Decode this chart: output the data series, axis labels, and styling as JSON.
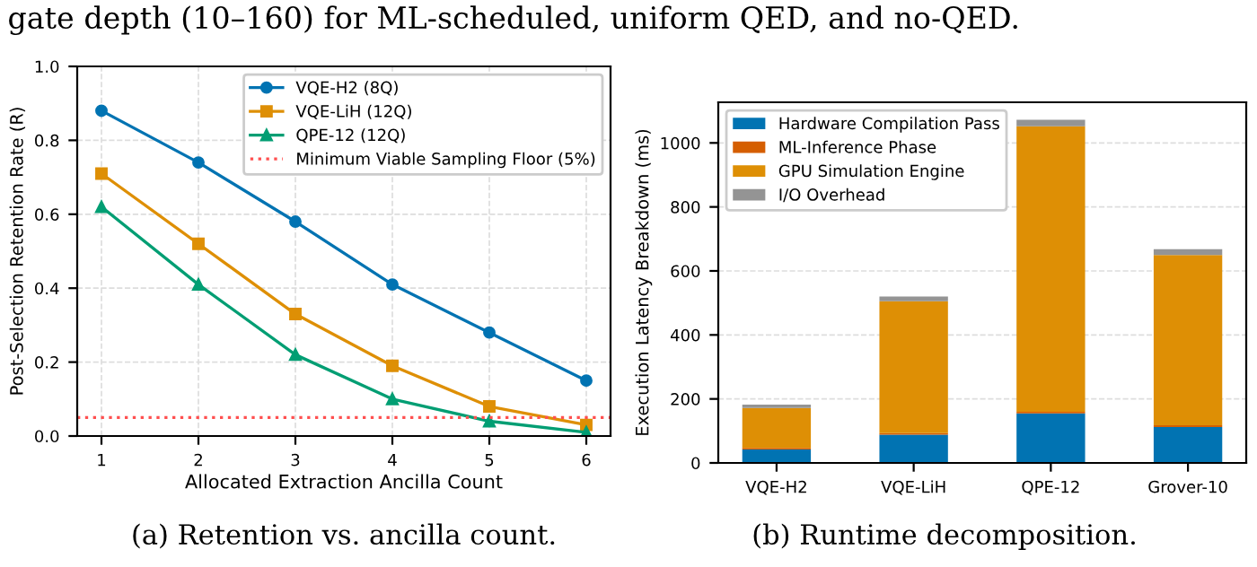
{
  "chart_data": [
    {
      "type": "line",
      "xlabel": "Allocated Extraction Ancilla Count",
      "ylabel": "Post-Selection Retention Rate (R)",
      "x": [
        1,
        2,
        3,
        4,
        5,
        6
      ],
      "xlim": [
        0.75,
        6.25
      ],
      "ylim": [
        0,
        1.0
      ],
      "xticks": [
        1,
        2,
        3,
        4,
        5,
        6
      ],
      "yticks": [
        {
          "value": 0,
          "label": "0.0"
        },
        0.2,
        0.4,
        0.6,
        0.8,
        {
          "value": 1,
          "label": "1.0"
        }
      ],
      "series": [
        {
          "name": "VQE-H2 (8Q)",
          "color": "#0173b2",
          "marker": "circle",
          "values": [
            0.88,
            0.74,
            0.58,
            0.41,
            0.28,
            0.15
          ]
        },
        {
          "name": "VQE-LiH (12Q)",
          "color": "#de8f05",
          "marker": "square",
          "values": [
            0.71,
            0.52,
            0.33,
            0.19,
            0.08,
            0.03
          ]
        },
        {
          "name": "QPE-12 (12Q)",
          "color": "#029e73",
          "marker": "triangle",
          "values": [
            0.62,
            0.41,
            0.22,
            0.1,
            0.04,
            0.01
          ]
        }
      ],
      "ref_lines": [
        {
          "axis": "y",
          "value": 0.05,
          "label": "Minimum Viable Sampling Floor (5%)",
          "color": "#ff5050",
          "line_style": "dotted"
        }
      ],
      "grid": true,
      "legend": "top right",
      "annotations": [
        "gate depth (10–160) for ML-scheduled, uniform QED, and no-QED.",
        "(a) Retention vs. ancilla count."
      ]
    },
    {
      "type": "bar",
      "stacked": true,
      "ylabel": "Execution Latency Breakdown (ms)",
      "categories": [
        "VQE-H2",
        "VQE-LiH",
        "QPE-12",
        "Grover-10"
      ],
      "ylim": [
        0,
        1127
      ],
      "yticks": [
        0,
        200,
        400,
        600,
        800,
        1000
      ],
      "series": [
        {
          "name": "Hardware Compilation Pass",
          "color": "#0173b2",
          "values": [
            42,
            88,
            155,
            112
          ]
        },
        {
          "name": "ML-Inference Phase",
          "color": "#d55e00",
          "values": [
            5,
            5,
            5,
            6
          ]
        },
        {
          "name": "GPU Simulation Engine",
          "color": "#de8f05",
          "values": [
            125,
            412,
            892,
            532
          ]
        },
        {
          "name": "I/O Overhead",
          "color": "#949494",
          "values": [
            10,
            15,
            20,
            18
          ]
        }
      ],
      "grid": "y",
      "legend": "top left",
      "annotations": [
        "(b) Runtime decomposition."
      ]
    }
  ]
}
